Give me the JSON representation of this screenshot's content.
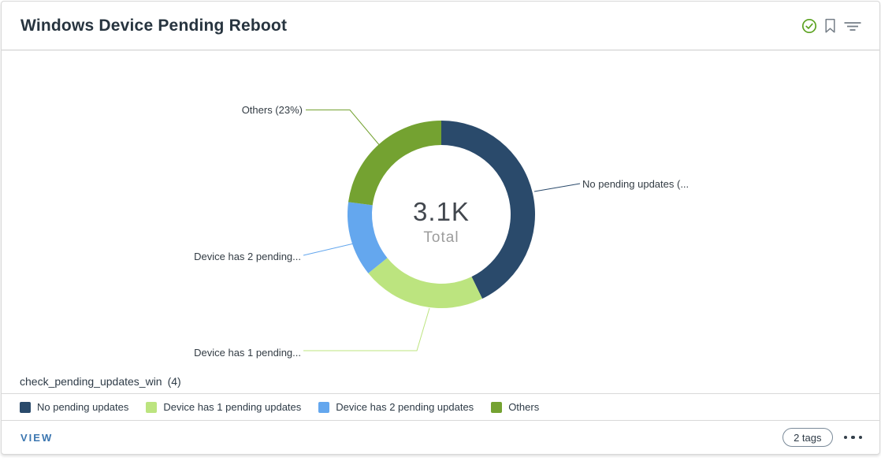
{
  "header": {
    "title": "Windows Device Pending Reboot"
  },
  "chart_data": {
    "type": "donut",
    "title": "Windows Device Pending Reboot",
    "center_value": "3.1K",
    "center_label": "Total",
    "series": [
      {
        "name": "No pending updates",
        "percent": 42.8,
        "color": "#2a4a6b",
        "callout": "No pending updates (..."
      },
      {
        "name": "Device has 1 pending updates",
        "percent": 21.4,
        "color": "#bce47f",
        "callout": "Device has 1 pending..."
      },
      {
        "name": "Device has 2 pending updates",
        "percent": 12.9,
        "color": "#64a7ee",
        "callout": "Device has 2 pending..."
      },
      {
        "name": "Others",
        "percent": 22.9,
        "color": "#74a231",
        "callout": "Others (23%)"
      }
    ],
    "legend_position": "bottom"
  },
  "datasource": {
    "name": "check_pending_updates_win",
    "count": "(4)"
  },
  "footer": {
    "view_label": "VIEW",
    "tags_badge": "2 tags"
  },
  "colors": {
    "status_check": "#5ba220",
    "header_icon_gray": "#757e87",
    "view_link": "#3b76b0"
  }
}
